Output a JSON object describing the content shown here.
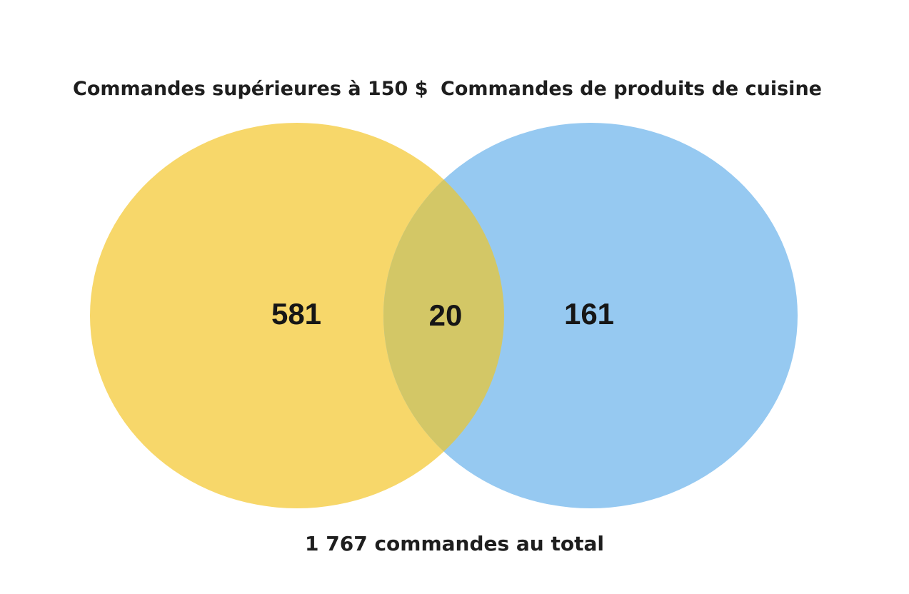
{
  "sets": [
    {
      "label": "Commandes supérieures à 150 $",
      "only_count": "581",
      "color": "#f7d76a"
    },
    {
      "label": "Commandes de produits de cuisine",
      "only_count": "161",
      "color": "#96c9f1"
    }
  ],
  "intersection": {
    "count": "20",
    "color": "#d3c766"
  },
  "total_label": "1 767 commandes au total"
}
